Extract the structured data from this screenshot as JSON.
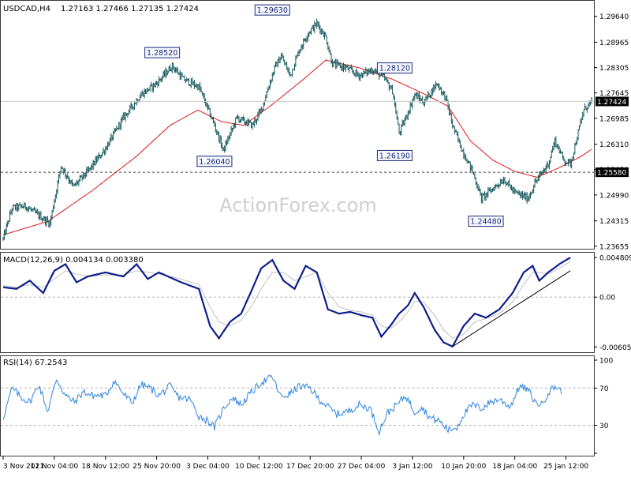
{
  "header": {
    "symbol": "USDCAD,H4",
    "ohlc": "1.27163 1.27466 1.27135 1.27424"
  },
  "watermark": "ActionForex.com",
  "colors": {
    "background": "#ffffff",
    "bars": "#16585b",
    "ma": "#e01818",
    "macd_line": "#0d1f8c",
    "signal_line": "#c0c0c0",
    "rsi_line": "#2c84e0",
    "grid": "#7a7a7a",
    "label_border": "#1a2a7a",
    "label_bg": "#f6f8ff"
  },
  "chart_data": [
    {
      "type": "line",
      "panel": "price",
      "title": "USDCAD,H4",
      "ohlc_header": "1.27163 1.27466 1.27135 1.27424",
      "y_axis": {
        "ticks": [
          "1.29640",
          "1.28965",
          "1.28305",
          "1.27645",
          "1.26985",
          "1.26310",
          "1.25650",
          "1.24990",
          "1.24315",
          "1.23655"
        ],
        "tick_values": [
          1.2964,
          1.28965,
          1.28305,
          1.27645,
          1.26985,
          1.2631,
          1.2565,
          1.2499,
          1.24315,
          1.23655
        ],
        "range": [
          1.2365,
          1.299
        ]
      },
      "x_axis": {
        "ticks": [
          "3 Nov 2021",
          "11 Nov 04:00",
          "18 Nov 12:00",
          "25 Nov 20:00",
          "3 Dec 04:00",
          "10 Dec 12:00",
          "17 Dec 20:00",
          "27 Dec 04:00",
          "3 Jan 12:00",
          "10 Jan 20:00",
          "18 Jan 04:00",
          "25 Jan 12:00"
        ],
        "tick_index": [
          0,
          46,
          92,
          138,
          184,
          230,
          276,
          322,
          368,
          414,
          460,
          506
        ]
      },
      "n_bars": 530,
      "series": [
        {
          "kind": "close_path_anchors",
          "points": [
            [
              0,
              1.2385
            ],
            [
              8,
              1.2465
            ],
            [
              20,
              1.247
            ],
            [
              42,
              1.2425
            ],
            [
              52,
              1.2575
            ],
            [
              63,
              1.252
            ],
            [
              76,
              1.256
            ],
            [
              92,
              1.262
            ],
            [
              108,
              1.27
            ],
            [
              124,
              1.276
            ],
            [
              138,
              1.279
            ],
            [
              152,
              1.2835
            ],
            [
              162,
              1.28
            ],
            [
              176,
              1.278
            ],
            [
              190,
              1.268
            ],
            [
              198,
              1.2615
            ],
            [
              210,
              1.27
            ],
            [
              224,
              1.268
            ],
            [
              232,
              1.272
            ],
            [
              244,
              1.283
            ],
            [
              250,
              1.286
            ],
            [
              258,
              1.281
            ],
            [
              266,
              1.2875
            ],
            [
              274,
              1.292
            ],
            [
              282,
              1.2945
            ],
            [
              290,
              1.291
            ],
            [
              296,
              1.284
            ],
            [
              308,
              1.283
            ],
            [
              320,
              1.281
            ],
            [
              332,
              1.2825
            ],
            [
              342,
              1.2805
            ],
            [
              350,
              1.277
            ],
            [
              356,
              1.266
            ],
            [
              362,
              1.27
            ],
            [
              370,
              1.276
            ],
            [
              378,
              1.274
            ],
            [
              390,
              1.279
            ],
            [
              398,
              1.275
            ],
            [
              404,
              1.268
            ],
            [
              412,
              1.262
            ],
            [
              422,
              1.256
            ],
            [
              430,
              1.249
            ],
            [
              440,
              1.2515
            ],
            [
              450,
              1.254
            ],
            [
              460,
              1.2505
            ],
            [
              472,
              1.249
            ],
            [
              478,
              1.253
            ],
            [
              490,
              1.258
            ],
            [
              496,
              1.264
            ],
            [
              504,
              1.259
            ],
            [
              510,
              1.258
            ],
            [
              516,
              1.265
            ],
            [
              522,
              1.272
            ],
            [
              529,
              1.27424
            ]
          ]
        }
      ],
      "ma_anchors": [
        [
          0,
          1.2395
        ],
        [
          40,
          1.243
        ],
        [
          80,
          1.251
        ],
        [
          120,
          1.26
        ],
        [
          150,
          1.268
        ],
        [
          175,
          1.272
        ],
        [
          196,
          1.269
        ],
        [
          216,
          1.268
        ],
        [
          240,
          1.273
        ],
        [
          270,
          1.28
        ],
        [
          290,
          1.285
        ],
        [
          320,
          1.283
        ],
        [
          350,
          1.28
        ],
        [
          380,
          1.276
        ],
        [
          400,
          1.273
        ],
        [
          420,
          1.264
        ],
        [
          440,
          1.259
        ],
        [
          460,
          1.256
        ],
        [
          480,
          1.2545
        ],
        [
          500,
          1.257
        ],
        [
          520,
          1.26
        ],
        [
          529,
          1.2618
        ]
      ],
      "annotations": [
        "1.28520",
        "1.29630",
        "1.26040",
        "1.28120",
        "1.26190",
        "1.24480"
      ],
      "annotation_points": [
        [
          143,
          1.2852
        ],
        [
          242,
          1.2963
        ],
        [
          190,
          1.2604
        ],
        [
          352,
          1.2812
        ],
        [
          352,
          1.2619
        ],
        [
          434,
          1.2448
        ]
      ],
      "current_price_label": "1.27424",
      "current_price": 1.27424,
      "dashed_level_label": "1.25580",
      "dashed_level": 1.2558,
      "watermark": "ActionForex.com"
    },
    {
      "type": "line",
      "panel": "macd",
      "title": "MACD(12,26,9) 0.004134 0.003380",
      "y_axis": {
        "ticks": [
          "0.004809",
          "0.00",
          "-0.00605"
        ],
        "tick_values": [
          0.004809,
          0.0,
          -0.00605
        ],
        "range": [
          -0.0065,
          0.0052
        ]
      },
      "x_range": [
        0,
        529
      ],
      "series": [
        {
          "name": "MACD",
          "points": [
            [
              0,
              0.0012
            ],
            [
              12,
              0.001
            ],
            [
              24,
              0.002
            ],
            [
              36,
              0.0005
            ],
            [
              46,
              0.0032
            ],
            [
              56,
              0.004
            ],
            [
              66,
              0.0018
            ],
            [
              76,
              0.0025
            ],
            [
              92,
              0.003
            ],
            [
              108,
              0.0025
            ],
            [
              120,
              0.004
            ],
            [
              130,
              0.0022
            ],
            [
              140,
              0.003
            ],
            [
              160,
              0.0018
            ],
            [
              176,
              0.001
            ],
            [
              186,
              -0.0035
            ],
            [
              194,
              -0.005
            ],
            [
              204,
              -0.003
            ],
            [
              214,
              -0.002
            ],
            [
              224,
              0.001
            ],
            [
              232,
              0.0035
            ],
            [
              242,
              0.0045
            ],
            [
              252,
              0.002
            ],
            [
              262,
              0.001
            ],
            [
              272,
              0.0038
            ],
            [
              282,
              0.003
            ],
            [
              292,
              -0.0015
            ],
            [
              302,
              -0.002
            ],
            [
              312,
              -0.0018
            ],
            [
              322,
              -0.0022
            ],
            [
              332,
              -0.0025
            ],
            [
              340,
              -0.0048
            ],
            [
              348,
              -0.0035
            ],
            [
              356,
              -0.002
            ],
            [
              364,
              -0.001
            ],
            [
              370,
              0.0005
            ],
            [
              378,
              -0.0012
            ],
            [
              388,
              -0.004
            ],
            [
              396,
              -0.0055
            ],
            [
              404,
              -0.006
            ],
            [
              414,
              -0.0035
            ],
            [
              424,
              -0.002
            ],
            [
              434,
              -0.0025
            ],
            [
              446,
              -0.0015
            ],
            [
              458,
              0.0005
            ],
            [
              468,
              0.003
            ],
            [
              476,
              0.0038
            ],
            [
              482,
              0.002
            ],
            [
              490,
              0.003
            ],
            [
              500,
              0.004
            ],
            [
              506,
              0.0045
            ],
            [
              510,
              0.0048
            ]
          ]
        },
        {
          "name": "Signal",
          "points": [
            [
              0,
              0.0014
            ],
            [
              12,
              0.0012
            ],
            [
              24,
              0.0015
            ],
            [
              36,
              0.0012
            ],
            [
              46,
              0.0022
            ],
            [
              56,
              0.0032
            ],
            [
              66,
              0.0028
            ],
            [
              76,
              0.0025
            ],
            [
              92,
              0.0027
            ],
            [
              108,
              0.0027
            ],
            [
              120,
              0.0032
            ],
            [
              130,
              0.003
            ],
            [
              140,
              0.0028
            ],
            [
              160,
              0.0022
            ],
            [
              176,
              0.0015
            ],
            [
              186,
              -0.0012
            ],
            [
              194,
              -0.003
            ],
            [
              204,
              -0.0035
            ],
            [
              214,
              -0.0028
            ],
            [
              224,
              -0.001
            ],
            [
              232,
              0.001
            ],
            [
              242,
              0.003
            ],
            [
              252,
              0.003
            ],
            [
              262,
              0.002
            ],
            [
              272,
              0.0025
            ],
            [
              282,
              0.003
            ],
            [
              292,
              0.0005
            ],
            [
              302,
              -0.0012
            ],
            [
              312,
              -0.0016
            ],
            [
              322,
              -0.0018
            ],
            [
              332,
              -0.0022
            ],
            [
              340,
              -0.0035
            ],
            [
              348,
              -0.0038
            ],
            [
              356,
              -0.003
            ],
            [
              364,
              -0.0018
            ],
            [
              370,
              -0.0005
            ],
            [
              378,
              -0.0006
            ],
            [
              388,
              -0.0022
            ],
            [
              396,
              -0.004
            ],
            [
              404,
              -0.005
            ],
            [
              414,
              -0.0045
            ],
            [
              424,
              -0.003
            ],
            [
              434,
              -0.0026
            ],
            [
              446,
              -0.002
            ],
            [
              458,
              -0.0006
            ],
            [
              468,
              0.0015
            ],
            [
              476,
              0.003
            ],
            [
              482,
              0.003
            ],
            [
              490,
              0.0028
            ],
            [
              500,
              0.0035
            ],
            [
              506,
              0.004
            ],
            [
              510,
              0.0043
            ]
          ]
        }
      ],
      "trendline": [
        [
          404,
          -0.006
        ],
        [
          510,
          0.0032
        ]
      ]
    },
    {
      "type": "line",
      "panel": "rsi",
      "title": "RSI(14) 67.2543",
      "y_axis": {
        "ticks": [
          "100",
          "70",
          "30",
          "0"
        ],
        "tick_values": [
          100,
          70,
          30,
          0
        ],
        "range": [
          0,
          100
        ]
      },
      "x_range": [
        0,
        529
      ],
      "levels": [
        70,
        30
      ],
      "series": [
        {
          "name": "RSI(14)",
          "points": [
            [
              0,
              38
            ],
            [
              8,
              70
            ],
            [
              16,
              60
            ],
            [
              24,
              55
            ],
            [
              32,
              74
            ],
            [
              40,
              45
            ],
            [
              48,
              80
            ],
            [
              56,
              62
            ],
            [
              64,
              55
            ],
            [
              72,
              66
            ],
            [
              80,
              62
            ],
            [
              92,
              62
            ],
            [
              100,
              78
            ],
            [
              108,
              64
            ],
            [
              116,
              54
            ],
            [
              124,
              74
            ],
            [
              132,
              70
            ],
            [
              140,
              62
            ],
            [
              150,
              72
            ],
            [
              158,
              60
            ],
            [
              168,
              58
            ],
            [
              176,
              40
            ],
            [
              184,
              35
            ],
            [
              190,
              28
            ],
            [
              198,
              48
            ],
            [
              206,
              60
            ],
            [
              214,
              52
            ],
            [
              222,
              64
            ],
            [
              232,
              76
            ],
            [
              242,
              82
            ],
            [
              250,
              60
            ],
            [
              258,
              64
            ],
            [
              266,
              72
            ],
            [
              276,
              70
            ],
            [
              284,
              58
            ],
            [
              292,
              50
            ],
            [
              300,
              42
            ],
            [
              310,
              45
            ],
            [
              320,
              52
            ],
            [
              330,
              48
            ],
            [
              338,
              24
            ],
            [
              346,
              44
            ],
            [
              354,
              52
            ],
            [
              362,
              62
            ],
            [
              370,
              44
            ],
            [
              376,
              50
            ],
            [
              384,
              38
            ],
            [
              392,
              35
            ],
            [
              400,
              25
            ],
            [
              408,
              28
            ],
            [
              414,
              42
            ],
            [
              422,
              52
            ],
            [
              430,
              48
            ],
            [
              438,
              55
            ],
            [
              446,
              58
            ],
            [
              456,
              50
            ],
            [
              464,
              72
            ],
            [
              472,
              68
            ],
            [
              478,
              55
            ],
            [
              484,
              52
            ],
            [
              490,
              65
            ],
            [
              496,
              72
            ],
            [
              502,
              67
            ]
          ]
        }
      ]
    }
  ]
}
